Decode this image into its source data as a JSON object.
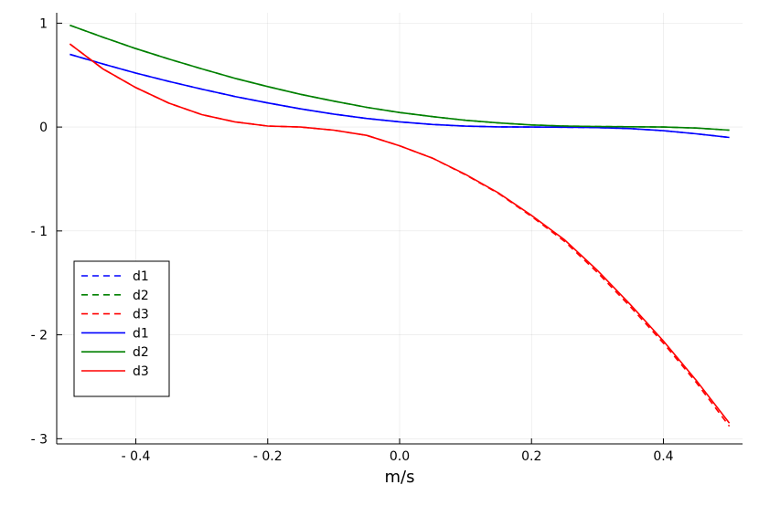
{
  "chart_data": {
    "type": "line",
    "title": "",
    "xlabel": "m/s",
    "ylabel": "",
    "xlim": [
      -0.52,
      0.52
    ],
    "ylim": [
      -3.05,
      1.1
    ],
    "xticks": [
      -0.4,
      -0.2,
      0.0,
      0.2,
      0.4
    ],
    "xtick_labels": [
      "- 0.4",
      "- 0.2",
      "0.0",
      "0.2",
      "0.4"
    ],
    "yticks": [
      1,
      0,
      -1,
      -2,
      -3
    ],
    "ytick_labels": [
      "1",
      "0",
      "- 1",
      "- 2",
      "- 3"
    ],
    "grid": true,
    "legend_position": "bottom-left",
    "series": [
      {
        "name": "d1",
        "style": "dashed",
        "color": "#0000ff",
        "x": [
          -0.5,
          -0.45,
          -0.4,
          -0.35,
          -0.3,
          -0.25,
          -0.2,
          -0.15,
          -0.1,
          -0.05,
          0.0,
          0.05,
          0.1,
          0.15,
          0.2,
          0.25,
          0.3,
          0.35,
          0.4,
          0.45,
          0.5
        ],
        "y": [
          0.7,
          0.608,
          0.52,
          0.44,
          0.365,
          0.295,
          0.232,
          0.175,
          0.125,
          0.083,
          0.05,
          0.025,
          0.009,
          0.0015,
          0.0,
          -0.002,
          -0.005,
          -0.015,
          -0.035,
          -0.065,
          -0.1
        ]
      },
      {
        "name": "d2",
        "style": "dashed",
        "color": "#008000",
        "x": [
          -0.5,
          -0.45,
          -0.4,
          -0.35,
          -0.3,
          -0.25,
          -0.2,
          -0.15,
          -0.1,
          -0.05,
          0.0,
          0.05,
          0.1,
          0.15,
          0.2,
          0.25,
          0.3,
          0.35,
          0.4,
          0.45,
          0.5
        ],
        "y": [
          0.98,
          0.865,
          0.755,
          0.655,
          0.56,
          0.47,
          0.39,
          0.315,
          0.25,
          0.19,
          0.14,
          0.1,
          0.065,
          0.04,
          0.02,
          0.01,
          0.005,
          0.003,
          0.0,
          -0.01,
          -0.03
        ]
      },
      {
        "name": "d3",
        "style": "dashed",
        "color": "#ff0000",
        "x": [
          -0.5,
          -0.45,
          -0.4,
          -0.35,
          -0.3,
          -0.25,
          -0.2,
          -0.15,
          -0.1,
          -0.05,
          0.0,
          0.05,
          0.1,
          0.15,
          0.2,
          0.25,
          0.3,
          0.35,
          0.4,
          0.45,
          0.5
        ],
        "y": [
          0.8,
          0.56,
          0.38,
          0.23,
          0.12,
          0.05,
          0.01,
          0.0,
          -0.03,
          -0.08,
          -0.18,
          -0.3,
          -0.46,
          -0.64,
          -0.86,
          -1.1,
          -1.4,
          -1.73,
          -2.08,
          -2.46,
          -2.88
        ]
      },
      {
        "name": "d1",
        "style": "solid",
        "color": "#0000ff",
        "x": [
          -0.5,
          -0.45,
          -0.4,
          -0.35,
          -0.3,
          -0.25,
          -0.2,
          -0.15,
          -0.1,
          -0.05,
          0.0,
          0.05,
          0.1,
          0.15,
          0.2,
          0.25,
          0.3,
          0.35,
          0.4,
          0.45,
          0.5
        ],
        "y": [
          0.7,
          0.608,
          0.52,
          0.44,
          0.365,
          0.295,
          0.232,
          0.175,
          0.125,
          0.083,
          0.05,
          0.025,
          0.009,
          0.0015,
          0.0,
          -0.002,
          -0.005,
          -0.015,
          -0.035,
          -0.065,
          -0.1
        ]
      },
      {
        "name": "d2",
        "style": "solid",
        "color": "#008000",
        "x": [
          -0.5,
          -0.45,
          -0.4,
          -0.35,
          -0.3,
          -0.25,
          -0.2,
          -0.15,
          -0.1,
          -0.05,
          0.0,
          0.05,
          0.1,
          0.15,
          0.2,
          0.25,
          0.3,
          0.35,
          0.4,
          0.45,
          0.5
        ],
        "y": [
          0.98,
          0.865,
          0.755,
          0.655,
          0.56,
          0.47,
          0.39,
          0.315,
          0.25,
          0.19,
          0.14,
          0.1,
          0.065,
          0.04,
          0.02,
          0.01,
          0.005,
          0.003,
          0.0,
          -0.01,
          -0.03
        ]
      },
      {
        "name": "d3",
        "style": "solid",
        "color": "#ff0000",
        "x": [
          -0.5,
          -0.45,
          -0.4,
          -0.35,
          -0.3,
          -0.25,
          -0.2,
          -0.15,
          -0.1,
          -0.05,
          0.0,
          0.05,
          0.1,
          0.15,
          0.2,
          0.25,
          0.3,
          0.35,
          0.4,
          0.45,
          0.5
        ],
        "y": [
          0.8,
          0.56,
          0.38,
          0.23,
          0.12,
          0.05,
          0.01,
          0.0,
          -0.03,
          -0.08,
          -0.18,
          -0.3,
          -0.455,
          -0.635,
          -0.85,
          -1.085,
          -1.38,
          -1.71,
          -2.06,
          -2.44,
          -2.85
        ]
      }
    ]
  }
}
